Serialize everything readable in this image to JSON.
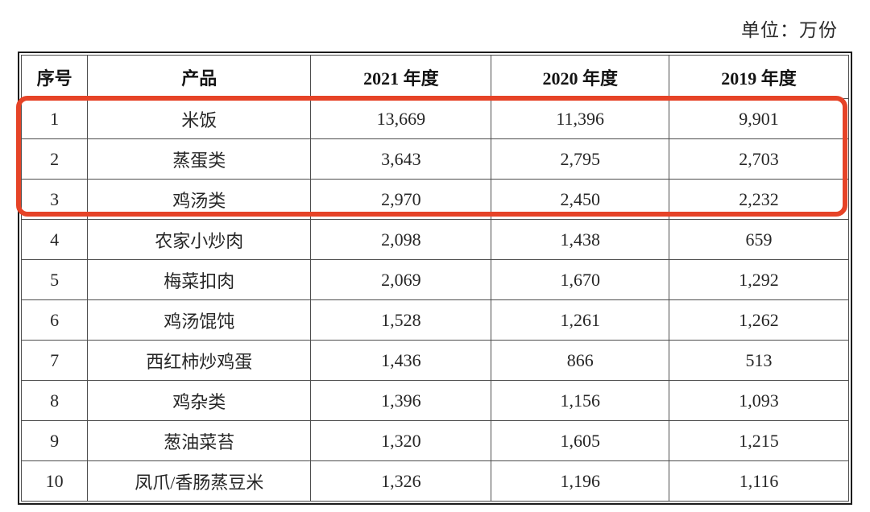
{
  "page": {
    "unit_label": "单位：万份"
  },
  "table": {
    "columns": [
      "序号",
      "产品",
      "2021 年度",
      "2020 年度",
      "2019 年度"
    ],
    "rows": [
      [
        "1",
        "米饭",
        "13,669",
        "11,396",
        "9,901"
      ],
      [
        "2",
        "蒸蛋类",
        "3,643",
        "2,795",
        "2,703"
      ],
      [
        "3",
        "鸡汤类",
        "2,970",
        "2,450",
        "2,232"
      ],
      [
        "4",
        "农家小炒肉",
        "2,098",
        "1,438",
        "659"
      ],
      [
        "5",
        "梅菜扣肉",
        "2,069",
        "1,670",
        "1,292"
      ],
      [
        "6",
        "鸡汤馄饨",
        "1,528",
        "1,261",
        "1,262"
      ],
      [
        "7",
        "西红柿炒鸡蛋",
        "1,436",
        "866",
        "513"
      ],
      [
        "8",
        "鸡杂类",
        "1,396",
        "1,156",
        "1,093"
      ],
      [
        "9",
        "葱油菜苔",
        "1,320",
        "1,605",
        "1,215"
      ],
      [
        "10",
        "凤爪/香肠蒸豆米",
        "1,326",
        "1,196",
        "1,116"
      ]
    ],
    "highlight": {
      "highlighted_rows": [
        1,
        2,
        3
      ],
      "color": "#e64327"
    }
  }
}
